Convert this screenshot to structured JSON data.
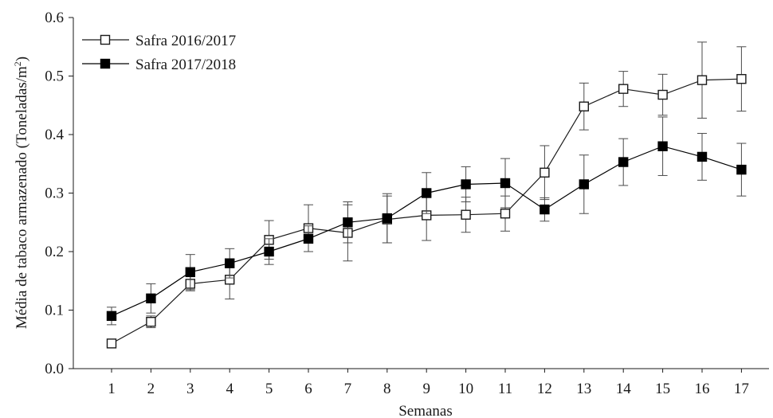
{
  "chart_data": {
    "type": "line",
    "xlabel": "Semanas",
    "ylabel": "Média de tabaco armazenado (Toneladas/m",
    "ylabel_superscript": "2",
    "ylabel_close": ")",
    "ylim": [
      0,
      0.6
    ],
    "yticks": [
      "0.0",
      "0.1",
      "0.2",
      "0.3",
      "0.4",
      "0.5",
      "0.6"
    ],
    "categories": [
      "1",
      "2",
      "3",
      "4",
      "5",
      "6",
      "7",
      "8",
      "9",
      "10",
      "11",
      "12",
      "13",
      "14",
      "15",
      "16",
      "17"
    ],
    "grid": false,
    "legend_placement": "top-left",
    "series": [
      {
        "name": "Safra 2016/2017",
        "marker": "open-square",
        "color": "#1a1a1a",
        "values": [
          0.043,
          0.08,
          0.145,
          0.152,
          0.22,
          0.24,
          0.232,
          0.255,
          0.262,
          0.263,
          0.265,
          0.335,
          0.448,
          0.478,
          0.468,
          0.493,
          0.495
        ],
        "errors": [
          0.007,
          0.01,
          0.012,
          0.033,
          0.033,
          0.04,
          0.048,
          0.04,
          0.043,
          0.03,
          0.03,
          0.046,
          0.04,
          0.03,
          0.035,
          0.065,
          0.055
        ]
      },
      {
        "name": "Safra 2017/2018",
        "marker": "filled-square",
        "color": "#000000",
        "values": [
          0.09,
          0.12,
          0.165,
          0.18,
          0.2,
          0.222,
          0.25,
          0.257,
          0.3,
          0.315,
          0.317,
          0.272,
          0.315,
          0.353,
          0.38,
          0.362,
          0.34
        ],
        "errors": [
          0.015,
          0.025,
          0.03,
          0.025,
          0.022,
          0.022,
          0.035,
          0.042,
          0.035,
          0.03,
          0.042,
          0.02,
          0.05,
          0.04,
          0.05,
          0.04,
          0.045
        ]
      }
    ]
  }
}
